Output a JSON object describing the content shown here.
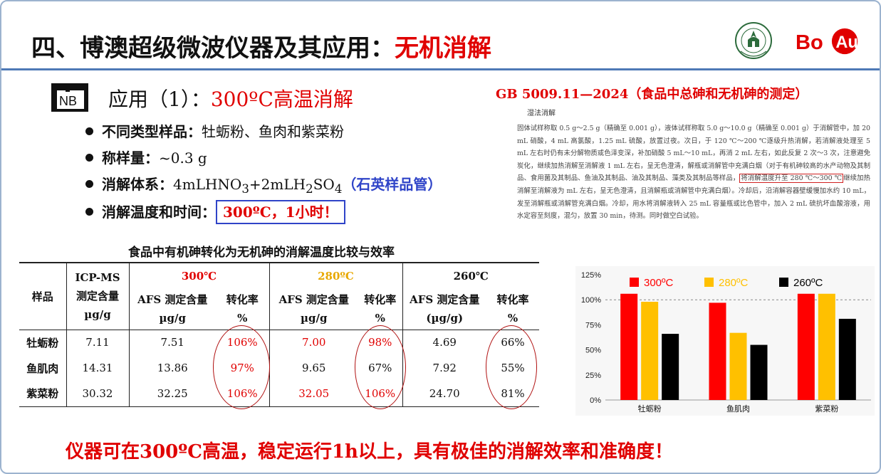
{
  "header": {
    "title_main": "四、博澳超级微波仪器及其应用：",
    "title_accent": "无机消解",
    "logo_sysu_text": "SUN YAT-SEN UNIVERSITY",
    "logo_boau_text": "BoAu",
    "accent_color": "#e00000"
  },
  "application": {
    "icon_text": "NB",
    "label": "应用（1）：",
    "title": "300ºC高温消解",
    "bullets": [
      {
        "label": "不同类型样品：",
        "value": "牡蛎粉、鱼肉和紫菜粉"
      },
      {
        "label": "称样量：",
        "value": "~0.3 g"
      },
      {
        "label": "消解体系：",
        "value_pre": "4mLHNO",
        "sub1": "3",
        "value_mid": "+2mLH",
        "sub2": "2",
        "value_mid2": "SO",
        "sub3": "4",
        "note": "（石英样品管）"
      },
      {
        "label": "消解温度和时间：",
        "boxed": "300ºC，1小时！"
      }
    ]
  },
  "standard": {
    "title": "GB 5009.11—2024（食品中总砷和无机砷的测定）",
    "heading": "湿法消解",
    "body_pre": "固体试样称取 0.5 g～2.5 g（精确至 0.001 g），液体试样称取 5.0 g～10.0 g（精确至 0.001 g）于消解管中，加 20 mL 硝酸，4 mL 高氯酸，1.25 mL 硫酸，放置过夜。次日，于 120 ℃～200 ℃逐级升热消解，若消解液处理至 5 mL 左右时仍有未分解物质或色泽变深，补加硝酸 5 mL～10 mL，再消 2 mL 左右，如此反复 2 次～3 次，注意避免炭化，继续加热消解至消解液 1 mL 左右，呈无色澄清，解瓶或消解管中充满白烟（对于有机砷较高的水产动物及其制品、食用菌及其制品、鱼油及其制品、油及其制品、藻类及其制品等样品，",
    "body_highlight": "将消解温度升至 280 ℃～300 ℃",
    "body_post": "继续加热消解至消解液为 mL 左右，呈无色澄清，且消解瓶或消解管中充满白烟）。冷却后，沿消解容器壁缓慢加水约 10 mL，发至消解瓶或消解管充满白烟。冷却，用水将消解液转入 25 mL 容量瓶或比色管中，加入 2 mL 硫抗坏血酸溶液，用水定容至刻度，混匀，放置 30 min，待测。同时做空白试验。"
  },
  "table": {
    "title": "食品中有机砷转化为无机砷的消解温度比较与效率",
    "col_sample": "样品",
    "col_icp": [
      "ICP-MS",
      "测定含量",
      "µg/g"
    ],
    "temps": [
      "300℃",
      "280ºC",
      "260℃"
    ],
    "sub_afs": [
      "AFS 测定含量",
      "µg/g"
    ],
    "sub_afs_260": [
      "AFS 测定含量",
      "(µg/g)"
    ],
    "sub_rate": [
      "转化率",
      "%"
    ],
    "rows": [
      {
        "sample": "牡蛎粉",
        "icp": "7.11",
        "afs300": "7.51",
        "r300": "106%",
        "afs280": "7.00",
        "r280": "98%",
        "afs260": "4.69",
        "r260": "66%"
      },
      {
        "sample": "鱼肌肉",
        "icp": "14.31",
        "afs300": "13.86",
        "r300": "97%",
        "afs280": "9.65",
        "r280": "67%",
        "afs260": "7.92",
        "r260": "55%"
      },
      {
        "sample": "紫菜粉",
        "icp": "30.32",
        "afs300": "32.25",
        "r300": "106%",
        "afs280": "32.05",
        "r280": "106%",
        "afs260": "24.70",
        "r260": "81%"
      }
    ]
  },
  "chart_data": {
    "type": "bar",
    "categories": [
      "牡蛎粉",
      "鱼肌肉",
      "紫菜粉"
    ],
    "series": [
      {
        "name": "300ºC",
        "color": "#ff0000",
        "values": [
          106,
          97,
          106
        ]
      },
      {
        "name": "280ºC",
        "color": "#ffc000",
        "values": [
          98,
          67,
          106
        ]
      },
      {
        "name": "260ºC",
        "color": "#000000",
        "values": [
          66,
          55,
          81
        ]
      }
    ],
    "yticks": [
      "0%",
      "25%",
      "50%",
      "75%",
      "100%",
      "125%"
    ],
    "ylim": [
      0,
      125
    ],
    "reference_line": 100,
    "legend": "top"
  },
  "conclusion": "仪器可在300ºC高温，稳定运行1h以上，具有极佳的消解效率和准确度！"
}
